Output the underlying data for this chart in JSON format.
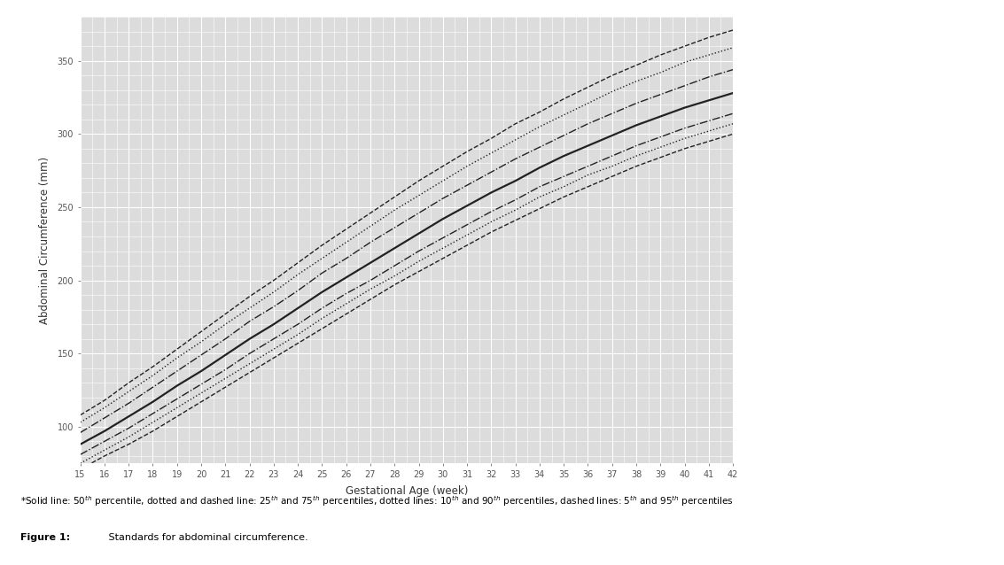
{
  "title": "",
  "xlabel": "Gestational Age (week)",
  "ylabel": "Abdominal Circumference (mm)",
  "xlim": [
    15,
    42
  ],
  "ylim": [
    75,
    380
  ],
  "xticks": [
    15,
    16,
    17,
    18,
    19,
    20,
    21,
    22,
    23,
    24,
    25,
    26,
    27,
    28,
    29,
    30,
    31,
    32,
    33,
    34,
    35,
    36,
    37,
    38,
    39,
    40,
    41,
    42
  ],
  "yticks": [
    100,
    150,
    200,
    250,
    300,
    350
  ],
  "fig_bg_color": "#ffffff",
  "plot_bg_color": "#dcdcdc",
  "grid_color": "#ffffff",
  "line_color": "#222222",
  "caption_line1": "*Solid line: 50$^{th}$ percentile, dotted and dashed line: 25$^{th}$ and 75$^{th}$ percentiles, dotted lines: 10$^{th}$ and 90$^{th}$ percentiles, dashed lines: 5$^{th}$ and 95$^{th}$ percentiles",
  "caption_line2_bold": "Figure 1:",
  "caption_line2_rest": " Standards for abdominal circumference.",
  "weeks": [
    15,
    16,
    17,
    18,
    19,
    20,
    21,
    22,
    23,
    24,
    25,
    26,
    27,
    28,
    29,
    30,
    31,
    32,
    33,
    34,
    35,
    36,
    37,
    38,
    39,
    40,
    41,
    42
  ],
  "p50": [
    88,
    97,
    107,
    117,
    128,
    138,
    149,
    160,
    170,
    181,
    192,
    202,
    212,
    222,
    232,
    242,
    251,
    260,
    268,
    277,
    285,
    292,
    299,
    306,
    312,
    318,
    323,
    328
  ],
  "p25": [
    81,
    90,
    99,
    109,
    119,
    129,
    139,
    150,
    160,
    170,
    181,
    191,
    200,
    210,
    220,
    229,
    238,
    247,
    255,
    264,
    271,
    278,
    285,
    292,
    298,
    304,
    309,
    314
  ],
  "p75": [
    96,
    106,
    116,
    127,
    138,
    149,
    160,
    172,
    182,
    193,
    205,
    215,
    226,
    236,
    246,
    256,
    265,
    274,
    283,
    291,
    299,
    307,
    314,
    321,
    327,
    333,
    339,
    344
  ],
  "p10": [
    75,
    84,
    93,
    103,
    113,
    123,
    133,
    143,
    153,
    163,
    174,
    184,
    194,
    203,
    213,
    222,
    231,
    240,
    248,
    257,
    264,
    272,
    278,
    285,
    291,
    297,
    302,
    307
  ],
  "p90": [
    103,
    113,
    124,
    135,
    147,
    158,
    170,
    181,
    192,
    204,
    215,
    226,
    237,
    248,
    258,
    268,
    278,
    287,
    296,
    305,
    313,
    321,
    329,
    336,
    342,
    349,
    354,
    359
  ],
  "p5": [
    71,
    80,
    88,
    97,
    107,
    117,
    127,
    137,
    147,
    157,
    167,
    177,
    187,
    197,
    206,
    215,
    224,
    233,
    241,
    249,
    257,
    264,
    271,
    278,
    284,
    290,
    295,
    300
  ],
  "p95": [
    108,
    118,
    130,
    141,
    153,
    165,
    177,
    189,
    200,
    212,
    224,
    235,
    246,
    257,
    268,
    278,
    288,
    297,
    307,
    315,
    324,
    332,
    340,
    347,
    354,
    360,
    366,
    371
  ]
}
